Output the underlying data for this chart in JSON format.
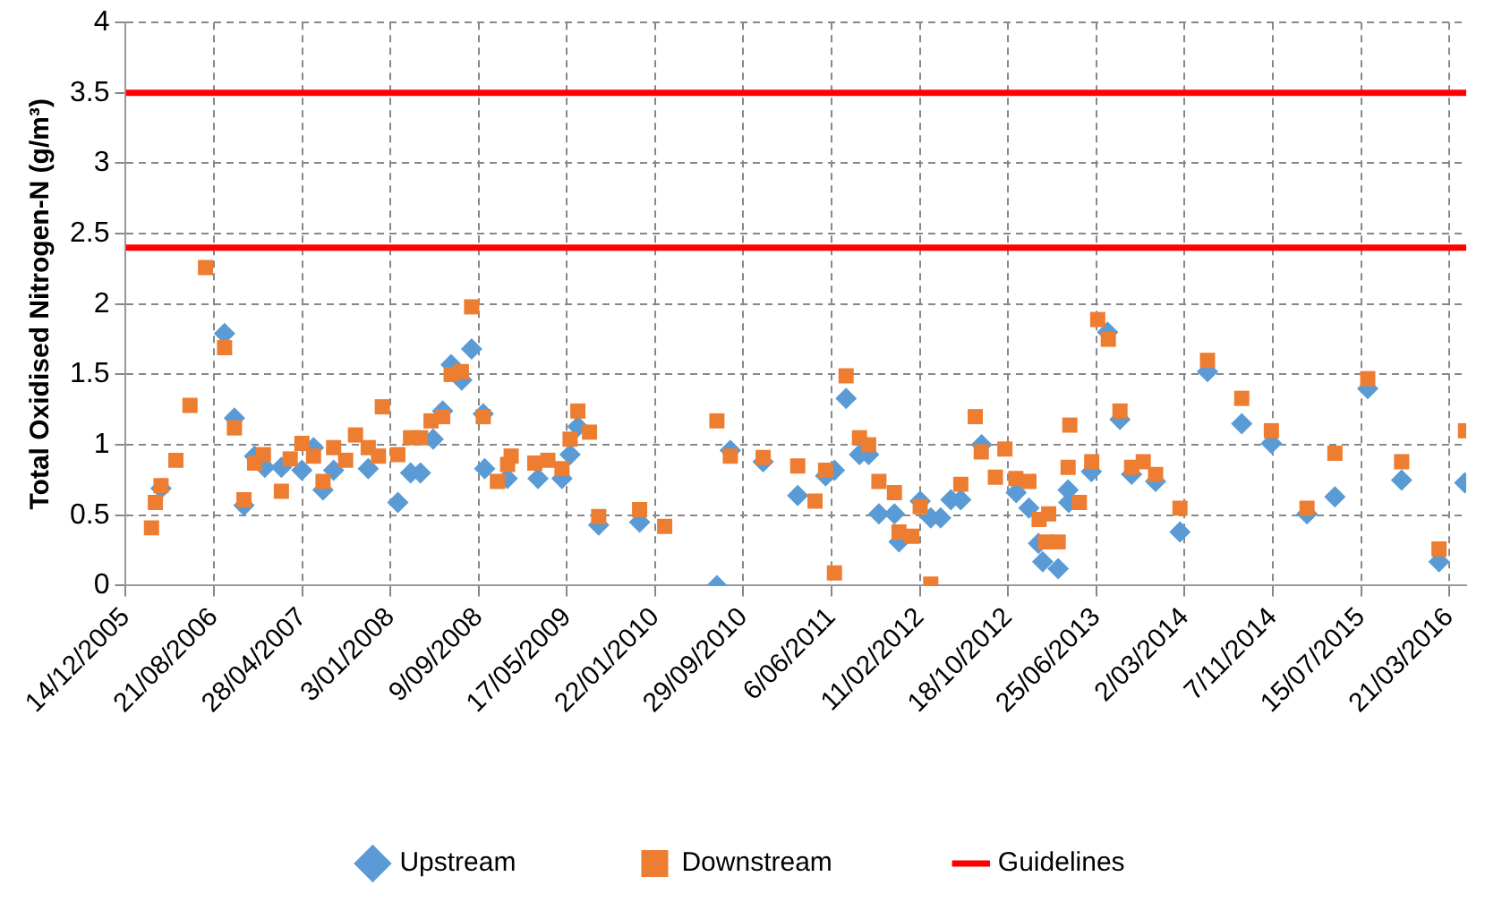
{
  "chart_data": {
    "type": "scatter",
    "ylabel": "Total Oxidised Nitrogen-N (g/m³)",
    "legend": "bottom",
    "grid": true,
    "xlim": [
      "2005-12-14",
      "2016-05-08"
    ],
    "xticks": [
      {
        "value": "2005-12-14",
        "label": "14/12/2005"
      },
      {
        "value": "2006-08-21",
        "label": "21/08/2006"
      },
      {
        "value": "2007-04-28",
        "label": "28/04/2007"
      },
      {
        "value": "2008-01-03",
        "label": "3/01/2008"
      },
      {
        "value": "2008-09-09",
        "label": "9/09/2008"
      },
      {
        "value": "2009-05-17",
        "label": "17/05/2009"
      },
      {
        "value": "2010-01-22",
        "label": "22/01/2010"
      },
      {
        "value": "2010-09-29",
        "label": "29/09/2010"
      },
      {
        "value": "2011-06-06",
        "label": "6/06/2011"
      },
      {
        "value": "2012-02-11",
        "label": "11/02/2012"
      },
      {
        "value": "2012-10-18",
        "label": "18/10/2012"
      },
      {
        "value": "2013-06-25",
        "label": "25/06/2013"
      },
      {
        "value": "2014-03-02",
        "label": "2/03/2014"
      },
      {
        "value": "2014-11-07",
        "label": "7/11/2014"
      },
      {
        "value": "2015-07-15",
        "label": "15/07/2015"
      },
      {
        "value": "2016-03-21",
        "label": "21/03/2016"
      }
    ],
    "ylim": [
      0,
      4
    ],
    "yticks": [
      0,
      0.5,
      1,
      1.5,
      2,
      2.5,
      3,
      3.5,
      4
    ],
    "series": [
      {
        "name": "Upstream",
        "color": "#5b9bd5",
        "marker": "diamond",
        "x": [
          "2006-03-24",
          "2006-09-20",
          "2006-10-18",
          "2006-11-14",
          "2006-12-14",
          "2007-01-12",
          "2007-02-28",
          "2007-04-27",
          "2007-05-30",
          "2007-06-26",
          "2007-07-26",
          "2007-11-01",
          "2008-01-24",
          "2008-02-29",
          "2008-03-28",
          "2008-05-03",
          "2008-05-30",
          "2008-06-23",
          "2008-07-23",
          "2008-08-20",
          "2008-09-22",
          "2008-09-26",
          "2008-11-29",
          "2009-02-24",
          "2009-05-03",
          "2009-05-26",
          "2009-06-17",
          "2009-08-15",
          "2009-12-09",
          "2010-07-16",
          "2010-08-23",
          "2010-11-24",
          "2011-03-02",
          "2011-05-20",
          "2011-06-14",
          "2011-07-17",
          "2011-08-24",
          "2011-09-19",
          "2011-10-18",
          "2011-12-01",
          "2011-12-14",
          "2012-02-12",
          "2012-03-13",
          "2012-04-10",
          "2012-05-09",
          "2012-06-06",
          "2012-08-04",
          "2012-11-10",
          "2012-12-16",
          "2013-01-12",
          "2013-01-24",
          "2013-03-09",
          "2013-04-06",
          "2013-04-08",
          "2013-06-11",
          "2013-07-27",
          "2013-08-31",
          "2013-10-03",
          "2013-12-10",
          "2014-02-17",
          "2014-05-06",
          "2014-08-11",
          "2014-11-03",
          "2015-02-12",
          "2015-05-02",
          "2015-08-03",
          "2015-11-07",
          "2016-02-21",
          "2016-05-04"
        ],
        "values": [
          0.69,
          1.79,
          1.19,
          0.57,
          0.92,
          0.84,
          0.84,
          0.82,
          0.98,
          0.68,
          0.82,
          0.83,
          0.59,
          0.8,
          0.8,
          1.04,
          1.24,
          1.57,
          1.46,
          1.68,
          1.22,
          0.83,
          0.76,
          0.76,
          0.76,
          0.93,
          1.13,
          0.43,
          0.45,
          0,
          0.96,
          0.88,
          0.64,
          0.78,
          0.82,
          1.33,
          0.93,
          0.93,
          0.51,
          0.51,
          0.31,
          0.6,
          0.48,
          0.48,
          0.61,
          0.61,
          1,
          0.66,
          0.55,
          0.3,
          0.17,
          0.12,
          0.68,
          0.59,
          0.81,
          1.8,
          1.18,
          0.79,
          0.74,
          0.38,
          1.52,
          1.15,
          1.01,
          0.51,
          0.63,
          1.4,
          0.75,
          0.17,
          0.73
        ]
      },
      {
        "name": "Downstream",
        "color": "#ed7d31",
        "marker": "square",
        "x": [
          "2006-02-25",
          "2006-03-08",
          "2006-03-24",
          "2006-05-05",
          "2006-06-14",
          "2006-07-28",
          "2006-09-20",
          "2006-10-18",
          "2006-11-14",
          "2006-12-14",
          "2007-01-08",
          "2007-02-28",
          "2007-03-25",
          "2007-04-27",
          "2007-05-30",
          "2007-06-26",
          "2007-07-26",
          "2007-08-29",
          "2007-09-26",
          "2007-11-01",
          "2007-11-30",
          "2007-12-11",
          "2008-01-24",
          "2008-02-29",
          "2008-03-28",
          "2008-04-27",
          "2008-05-30",
          "2008-06-23",
          "2008-07-22",
          "2008-08-20",
          "2008-09-22",
          "2008-11-01",
          "2008-11-30",
          "2008-12-10",
          "2009-02-15",
          "2009-03-24",
          "2009-05-03",
          "2009-05-26",
          "2009-06-17",
          "2009-07-20",
          "2009-08-15",
          "2009-12-09",
          "2010-02-18",
          "2010-07-16",
          "2010-08-23",
          "2010-11-24",
          "2011-03-02",
          "2011-04-20",
          "2011-05-20",
          "2011-06-14",
          "2011-07-17",
          "2011-08-24",
          "2011-09-19",
          "2011-10-18",
          "2011-12-01",
          "2011-12-14",
          "2012-01-19",
          "2012-02-12",
          "2012-03-13",
          "2012-06-06",
          "2012-07-17",
          "2012-08-03",
          "2012-09-12",
          "2012-10-09",
          "2012-11-09",
          "2012-12-16",
          "2013-01-14",
          "2013-02-01",
          "2013-02-10",
          "2013-03-09",
          "2013-04-06",
          "2013-04-11",
          "2013-05-08",
          "2013-06-12",
          "2013-06-29",
          "2013-07-29",
          "2013-08-31",
          "2013-10-03",
          "2013-11-05",
          "2013-12-10",
          "2014-02-17",
          "2014-05-06",
          "2014-08-11",
          "2014-11-03",
          "2015-02-12",
          "2015-05-02",
          "2015-08-03",
          "2015-11-07",
          "2016-02-21",
          "2016-05-06"
        ],
        "values": [
          0.41,
          0.59,
          0.71,
          0.89,
          1.28,
          2.26,
          1.69,
          1.12,
          0.61,
          0.87,
          0.93,
          0.67,
          0.9,
          1.01,
          0.92,
          0.74,
          0.98,
          0.89,
          1.07,
          0.98,
          0.92,
          1.27,
          0.93,
          1.05,
          1.05,
          1.17,
          1.2,
          1.5,
          1.52,
          1.98,
          1.2,
          0.74,
          0.86,
          0.92,
          0.87,
          0.89,
          0.83,
          1.04,
          1.24,
          1.09,
          0.49,
          0.54,
          0.42,
          1.17,
          0.92,
          0.91,
          0.85,
          0.6,
          0.82,
          0.09,
          1.49,
          1.05,
          1,
          0.74,
          0.66,
          0.38,
          0.35,
          0.56,
          0.01,
          0.72,
          1.2,
          0.95,
          0.77,
          0.97,
          0.76,
          0.74,
          0.47,
          0.31,
          0.51,
          0.31,
          0.84,
          1.14,
          0.59,
          0.88,
          1.89,
          1.75,
          1.24,
          0.84,
          0.88,
          0.79,
          0.55,
          1.6,
          1.33,
          1.1,
          0.55,
          0.94,
          1.47,
          0.88,
          0.26,
          1.1
        ]
      }
    ],
    "ref_lines": [
      {
        "axis": "y",
        "value": 2.4,
        "label": "Guidelines",
        "color": "#ff0000"
      },
      {
        "axis": "y",
        "value": 3.5,
        "color": "#ff0000"
      }
    ]
  }
}
